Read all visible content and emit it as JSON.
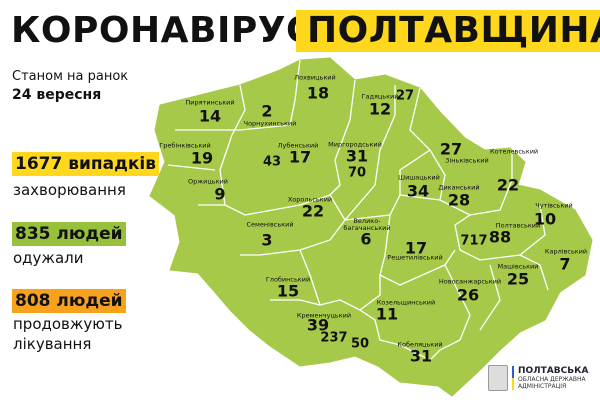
{
  "header": {
    "title_left": "КОРОНАВІРУС.",
    "title_right": "ПОЛТАВЩИНА",
    "highlight_color": "#ffd81e"
  },
  "date": {
    "line1": "Станом на ранок",
    "line2": "24 вересня"
  },
  "stats": [
    {
      "value": "1677 випадків",
      "label": "захворювання",
      "color": "#ffd81e"
    },
    {
      "value": "835 людей",
      "label": "одужали",
      "color": "#97c03b"
    },
    {
      "value": "808 людей",
      "label_line1": "продовжують",
      "label_line2": "лікування",
      "color": "#f6a21c"
    }
  ],
  "map": {
    "fill_color": "#a6c94a",
    "districts": [
      {
        "name": "Пирятинський",
        "cases": "14"
      },
      {
        "name": "Чорнухинський",
        "cases": "2"
      },
      {
        "name": "Лохвицький",
        "cases": "18"
      },
      {
        "name": "Гадяцький",
        "cases": "12"
      },
      {
        "name": "Гребінківський",
        "cases": "19"
      },
      {
        "name": "Лубенський",
        "cases": "17"
      },
      {
        "name": "Миргородський",
        "cases": "31"
      },
      {
        "name": "Оржицький",
        "cases": "9"
      },
      {
        "name": "Хорольський",
        "cases": "22"
      },
      {
        "name": "Семенівський",
        "cases": "3"
      },
      {
        "name": "Велико-багачанський",
        "cases": "6"
      },
      {
        "name": "Зіньківський",
        "cases": "27"
      },
      {
        "name": "Котелевський",
        "cases": "22"
      },
      {
        "name": "Шишацький",
        "cases": "34"
      },
      {
        "name": "Диканський",
        "cases": "28"
      },
      {
        "name": "Чутівський",
        "cases": "10"
      },
      {
        "name": "Полтавський",
        "cases": "88"
      },
      {
        "name": "Решетилівський",
        "cases": "17"
      },
      {
        "name": "Карлівський",
        "cases": "7"
      },
      {
        "name": "Машівський",
        "cases": "25"
      },
      {
        "name": "Новосанжарський",
        "cases": "26"
      },
      {
        "name": "Глобинський",
        "cases": "15"
      },
      {
        "name": "Козельщинський",
        "cases": "11"
      },
      {
        "name": "Кременчуцький",
        "cases": "39"
      },
      {
        "name": "Кобеляцький",
        "cases": "31"
      }
    ],
    "cities": [
      {
        "name": "Лубни",
        "cases": "43"
      },
      {
        "name": "Миргород",
        "cases": "70"
      },
      {
        "name": "Гадяч",
        "cases": "27"
      },
      {
        "name": "Полтава",
        "cases": "717"
      },
      {
        "name": "Кременчук",
        "cases": "237"
      },
      {
        "name": "Горішні Плавні",
        "cases": "50"
      }
    ]
  },
  "logo": {
    "line1": "ПОЛТАВСЬКА",
    "line2": "ОБЛАСНА ДЕРЖАВНА",
    "line3": "АДМІНІСТРАЦІЯ"
  }
}
